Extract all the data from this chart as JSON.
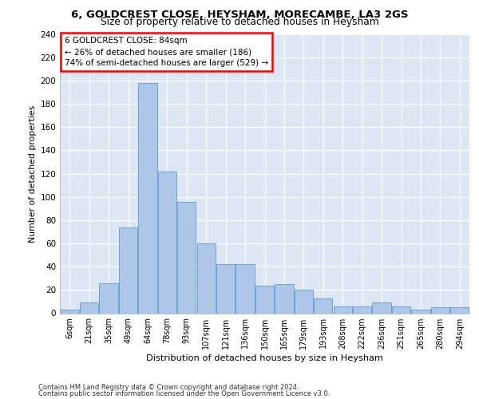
{
  "title1": "6, GOLDCREST CLOSE, HEYSHAM, MORECAMBE, LA3 2GS",
  "title2": "Size of property relative to detached houses in Heysham",
  "xlabel": "Distribution of detached houses by size in Heysham",
  "ylabel": "Number of detached properties",
  "footer1": "Contains HM Land Registry data © Crown copyright and database right 2024.",
  "footer2": "Contains public sector information licensed under the Open Government Licence v3.0.",
  "annotation_line1": "6 GOLDCREST CLOSE: 84sqm",
  "annotation_line2": "← 26% of detached houses are smaller (186)",
  "annotation_line3": "74% of semi-detached houses are larger (529) →",
  "bar_color": "#aec6e8",
  "bar_edge_color": "#5b9bd5",
  "background_color": "#dce6f5",
  "categories": [
    "6sqm",
    "21sqm",
    "35sqm",
    "49sqm",
    "64sqm",
    "78sqm",
    "93sqm",
    "107sqm",
    "121sqm",
    "136sqm",
    "150sqm",
    "165sqm",
    "179sqm",
    "193sqm",
    "208sqm",
    "222sqm",
    "236sqm",
    "251sqm",
    "265sqm",
    "280sqm",
    "294sqm"
  ],
  "values": [
    3,
    9,
    26,
    74,
    198,
    122,
    96,
    60,
    42,
    42,
    24,
    25,
    20,
    13,
    6,
    6,
    9,
    6,
    3,
    5,
    5
  ],
  "ylim": [
    0,
    240
  ],
  "yticks": [
    0,
    20,
    40,
    60,
    80,
    100,
    120,
    140,
    160,
    180,
    200,
    220,
    240
  ]
}
